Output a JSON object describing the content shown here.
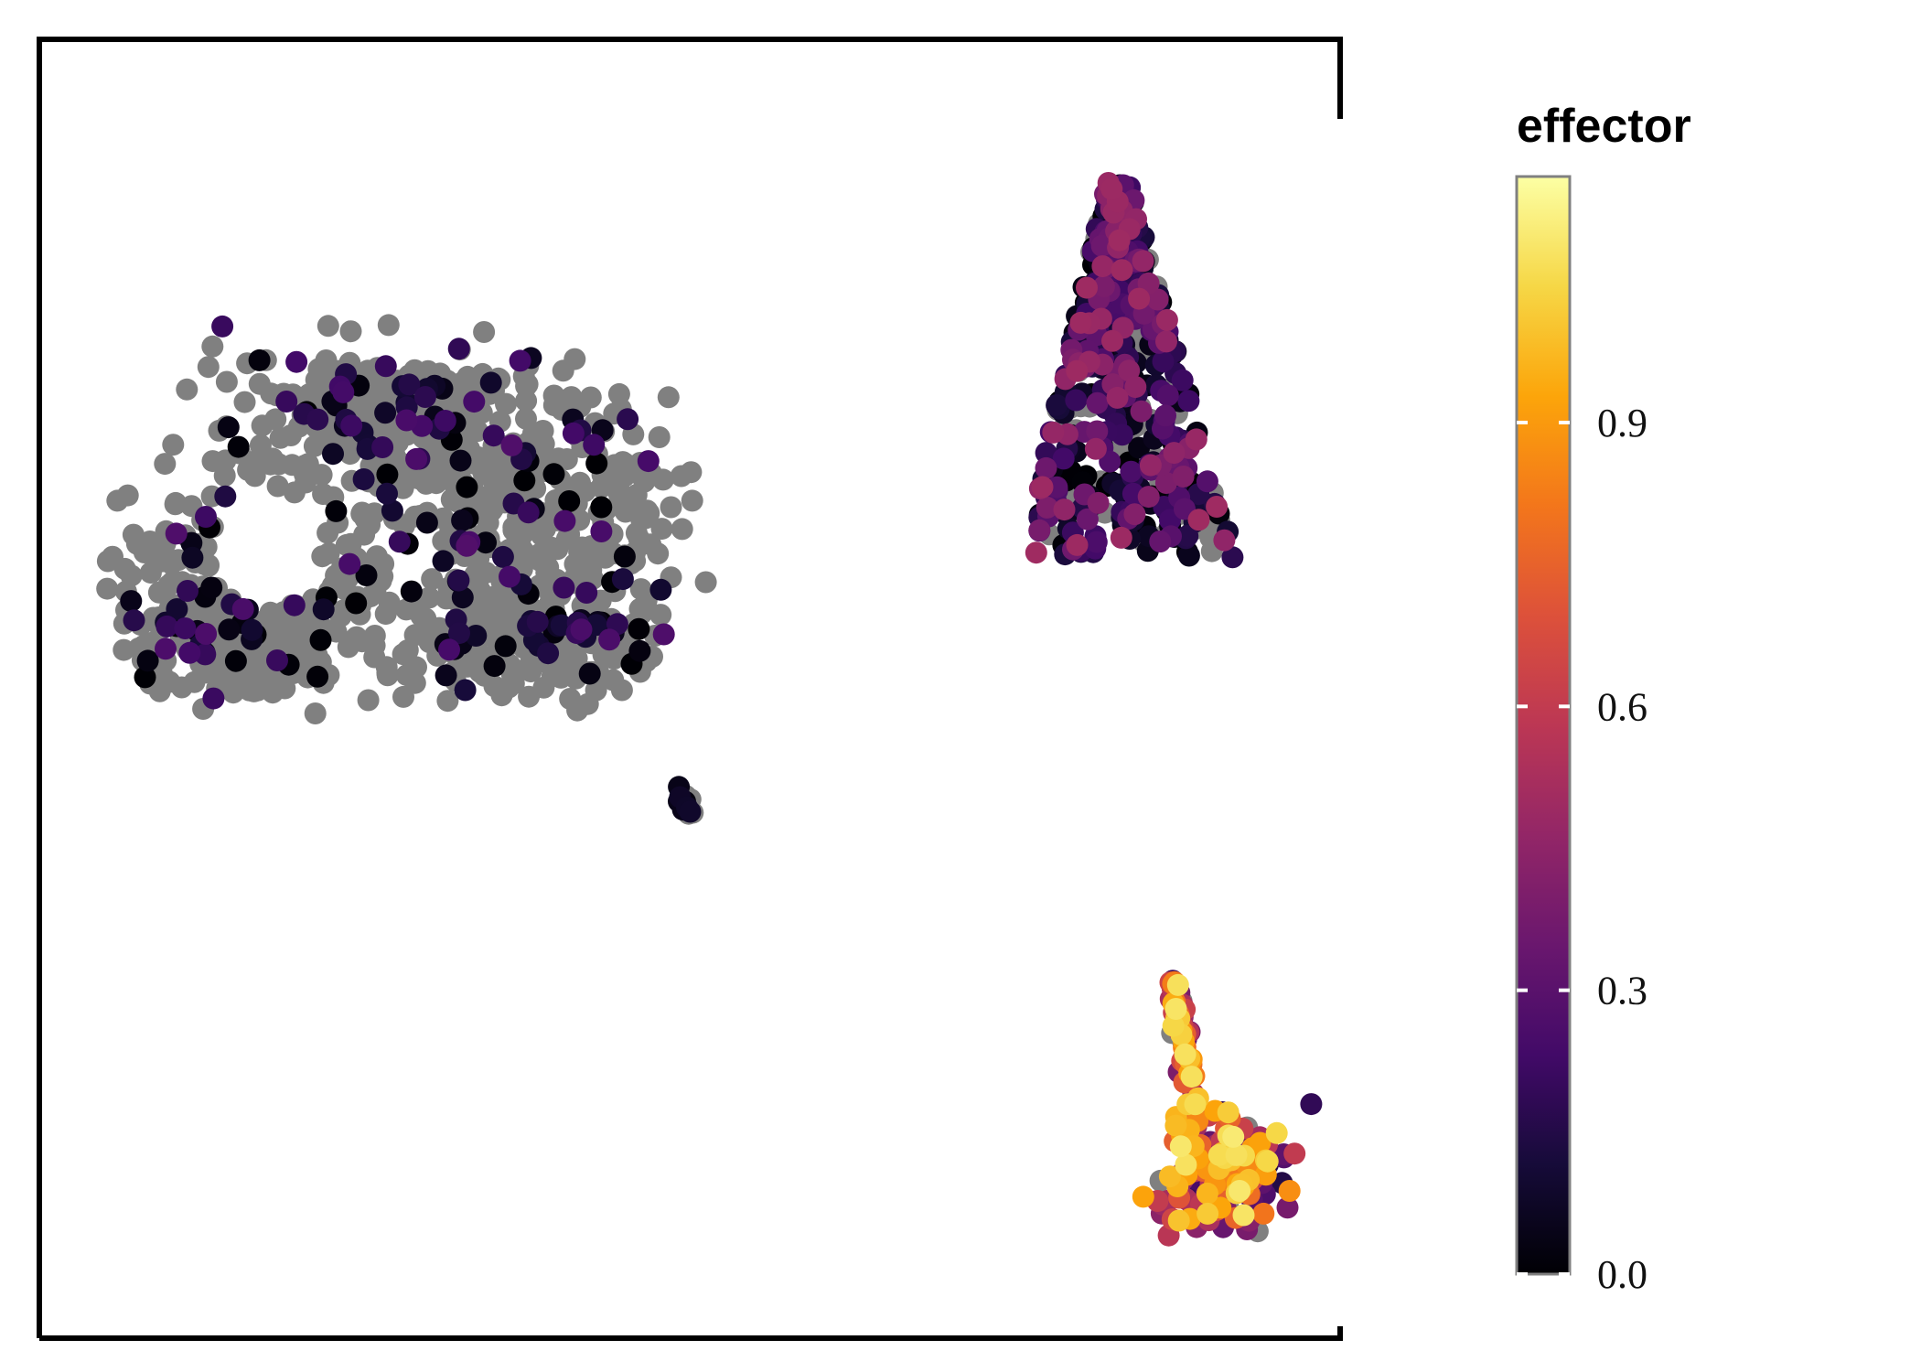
{
  "chart_data": {
    "type": "scatter",
    "title": "",
    "xlabel": "",
    "ylabel": "",
    "grid": false,
    "axes_visible": false,
    "legend_placement": "right",
    "colorbar": {
      "title": "effector",
      "colormap": "inferno",
      "range": [
        0.0,
        1.16
      ],
      "ticks": [
        0.0,
        0.3,
        0.6,
        0.9
      ],
      "tick_labels": [
        "0.0",
        "0.3",
        "0.6",
        "0.9"
      ],
      "na_color": "#808080"
    },
    "xlim": [
      -10,
      10
    ],
    "ylim": [
      -10,
      10
    ],
    "clusters": [
      {
        "name": "",
        "n_points": 1100,
        "center": [
          -5.2,
          4.0
        ],
        "value_range": [
          0.0,
          0.28
        ],
        "fraction_unscored": 0.85
      },
      {
        "name": "",
        "n_points": 520,
        "center": [
          5.9,
          5.1
        ],
        "value_range": [
          0.0,
          0.5
        ],
        "fraction_unscored": 0.2
      },
      {
        "name": "",
        "n_points": 12,
        "center": [
          -0.3,
          -1.7
        ],
        "value_range": [
          0.0,
          0.1
        ],
        "fraction_unscored": 0.3
      },
      {
        "name": "",
        "n_points": 240,
        "center": [
          7.7,
          -6.9
        ],
        "value_range": [
          0.1,
          1.1
        ],
        "fraction_unscored": 0.05
      }
    ]
  },
  "colors": {
    "frame": "#000000",
    "background": "#ffffff",
    "unscored_points": "#808080",
    "colorbar_border": "#808080",
    "tick_marks": "#ffffff"
  }
}
